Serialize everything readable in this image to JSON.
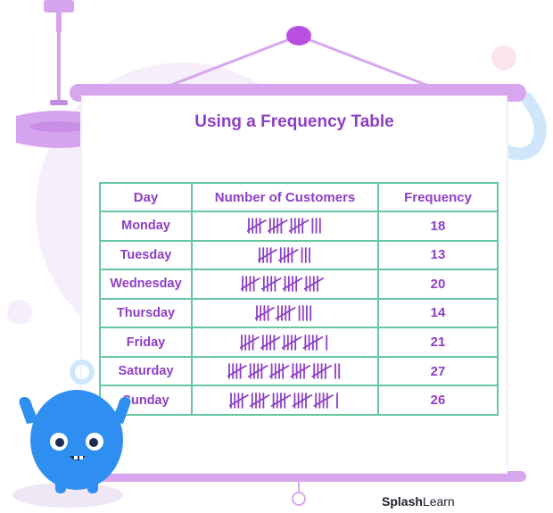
{
  "title": "Using a Frequency Table",
  "table": {
    "headers": [
      "Day",
      "Number of Customers",
      "Frequency"
    ],
    "rows": [
      {
        "day": "Monday",
        "tally": 18,
        "frequency": "18"
      },
      {
        "day": "Tuesday",
        "tally": 13,
        "frequency": "13"
      },
      {
        "day": "Wednesday",
        "tally": 20,
        "frequency": "20"
      },
      {
        "day": "Thursday",
        "tally": 14,
        "frequency": "14"
      },
      {
        "day": "Friday",
        "tally": 21,
        "frequency": "21"
      },
      {
        "day": "Saturday",
        "tally": 27,
        "frequency": "27"
      },
      {
        "day": "Sunday",
        "tally": 26,
        "frequency": "26"
      }
    ]
  },
  "brand": {
    "name_bold": "Splash",
    "name_light": "Learn"
  },
  "colors": {
    "accent": "#8d3fc4",
    "table_border": "#66c79f",
    "board_bar": "#d8a6ef",
    "mascot": "#2f8ff0"
  }
}
